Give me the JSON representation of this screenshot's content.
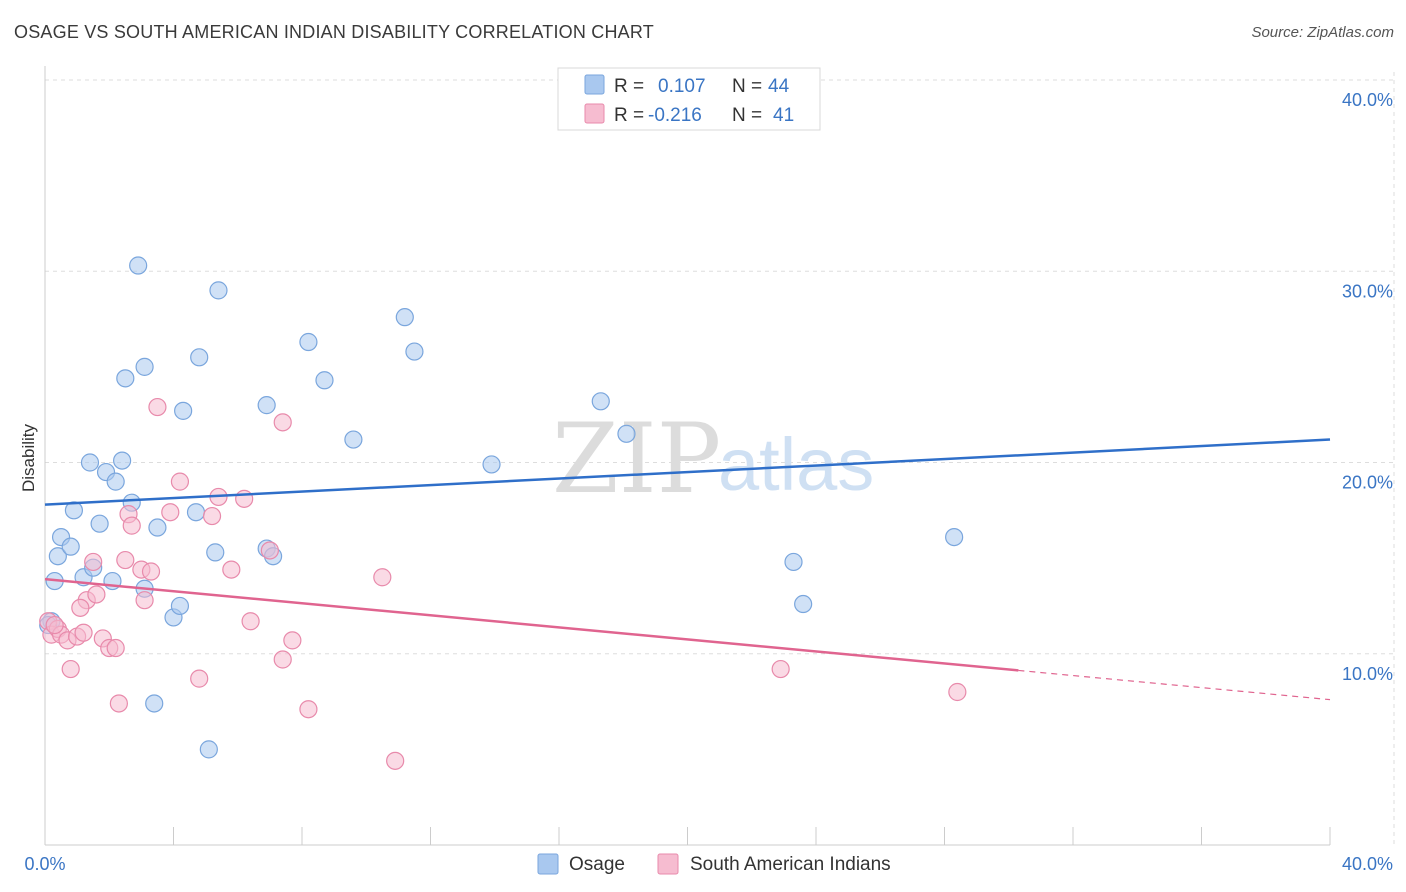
{
  "title": "OSAGE VS SOUTH AMERICAN INDIAN DISABILITY CORRELATION CHART",
  "source": "Source: ZipAtlas.com",
  "watermark": {
    "zip": "ZIP",
    "atlas": "atlas"
  },
  "chart_data": {
    "type": "scatter",
    "ylabel": "Disability",
    "xlim": [
      0,
      40
    ],
    "ylim": [
      0,
      40
    ],
    "x_tick_labels": [
      "0.0%",
      "40.0%"
    ],
    "y_ticks": [
      {
        "value": 10,
        "label": "10.0%"
      },
      {
        "value": 20,
        "label": "20.0%"
      },
      {
        "value": 30,
        "label": "30.0%"
      },
      {
        "value": 40,
        "label": "40.0%"
      }
    ],
    "grid": true,
    "legend_position": "top-center",
    "series": [
      {
        "name": "Osage",
        "color": "#a9c8ef",
        "stroke": "#7aa6dd",
        "line_color": "#2f6fc9",
        "r_label": "R =",
        "r_value": "0.107",
        "n_label": "N =",
        "n_value": "44",
        "trend": {
          "x0": 0,
          "y0": 17.8,
          "x1": 40,
          "y1": 21.2,
          "dashed_from": null
        },
        "points": [
          [
            0.2,
            11.7
          ],
          [
            0.3,
            13.8
          ],
          [
            0.4,
            15.1
          ],
          [
            0.5,
            16.1
          ],
          [
            0.8,
            15.6
          ],
          [
            0.9,
            17.5
          ],
          [
            1.2,
            14.0
          ],
          [
            1.4,
            20.0
          ],
          [
            1.5,
            14.5
          ],
          [
            1.7,
            16.8
          ],
          [
            1.9,
            19.5
          ],
          [
            2.1,
            13.8
          ],
          [
            2.2,
            19.0
          ],
          [
            2.4,
            20.1
          ],
          [
            2.5,
            24.4
          ],
          [
            2.7,
            17.9
          ],
          [
            2.9,
            30.3
          ],
          [
            3.1,
            13.4
          ],
          [
            3.1,
            25.0
          ],
          [
            3.4,
            7.4
          ],
          [
            3.5,
            16.6
          ],
          [
            4.0,
            11.9
          ],
          [
            4.2,
            12.5
          ],
          [
            4.3,
            22.7
          ],
          [
            4.7,
            17.4
          ],
          [
            4.8,
            25.5
          ],
          [
            5.1,
            5.0
          ],
          [
            5.3,
            15.3
          ],
          [
            5.4,
            29.0
          ],
          [
            6.9,
            15.5
          ],
          [
            6.9,
            23.0
          ],
          [
            7.1,
            15.1
          ],
          [
            8.2,
            26.3
          ],
          [
            8.7,
            24.3
          ],
          [
            9.6,
            21.2
          ],
          [
            11.2,
            27.6
          ],
          [
            11.5,
            25.8
          ],
          [
            13.9,
            19.9
          ],
          [
            17.3,
            23.2
          ],
          [
            18.1,
            21.5
          ],
          [
            23.3,
            14.8
          ],
          [
            23.6,
            12.6
          ],
          [
            28.3,
            16.1
          ],
          [
            0.1,
            11.5
          ]
        ]
      },
      {
        "name": "South American Indians",
        "color": "#f6bcd0",
        "stroke": "#e88aab",
        "line_color": "#e0648f",
        "r_label": "R =",
        "r_value": "-0.216",
        "n_label": "N =",
        "n_value": "41",
        "trend": {
          "x0": 0,
          "y0": 13.9,
          "x1": 40,
          "y1": 7.6,
          "dashed_from": 30.3
        },
        "points": [
          [
            0.1,
            11.7
          ],
          [
            0.2,
            11.0
          ],
          [
            0.4,
            11.3
          ],
          [
            0.5,
            11.0
          ],
          [
            0.7,
            10.7
          ],
          [
            0.8,
            9.2
          ],
          [
            1.0,
            10.9
          ],
          [
            1.2,
            11.1
          ],
          [
            1.3,
            12.8
          ],
          [
            1.5,
            14.8
          ],
          [
            1.6,
            13.1
          ],
          [
            1.8,
            10.8
          ],
          [
            2.0,
            10.3
          ],
          [
            2.2,
            10.3
          ],
          [
            2.3,
            7.4
          ],
          [
            2.5,
            14.9
          ],
          [
            2.6,
            17.3
          ],
          [
            2.7,
            16.7
          ],
          [
            3.0,
            14.4
          ],
          [
            3.1,
            12.8
          ],
          [
            3.3,
            14.3
          ],
          [
            3.5,
            22.9
          ],
          [
            3.9,
            17.4
          ],
          [
            4.2,
            19.0
          ],
          [
            4.8,
            8.7
          ],
          [
            5.2,
            17.2
          ],
          [
            5.4,
            18.2
          ],
          [
            5.8,
            14.4
          ],
          [
            6.2,
            18.1
          ],
          [
            6.4,
            11.7
          ],
          [
            7.0,
            15.4
          ],
          [
            7.4,
            22.1
          ],
          [
            7.4,
            9.7
          ],
          [
            7.7,
            10.7
          ],
          [
            8.2,
            7.1
          ],
          [
            10.5,
            14.0
          ],
          [
            10.9,
            4.4
          ],
          [
            22.9,
            9.2
          ],
          [
            28.4,
            8.0
          ],
          [
            1.1,
            12.4
          ],
          [
            0.3,
            11.5
          ]
        ]
      }
    ]
  }
}
